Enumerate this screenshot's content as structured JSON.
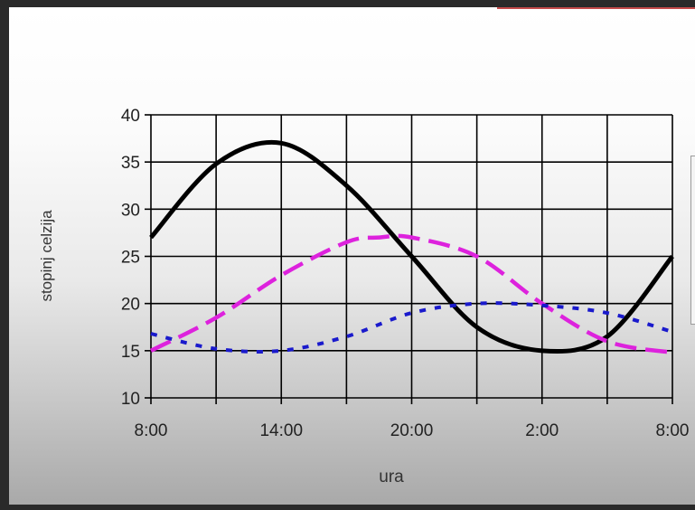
{
  "chart_data": {
    "type": "line",
    "title": "",
    "xlabel": "ura",
    "ylabel": "stopinj celzija",
    "x_ticks": [
      "8:00",
      "14:00",
      "20:00",
      "2:00",
      "8:00"
    ],
    "y_ticks": [
      "10",
      "15",
      "20",
      "25",
      "30",
      "35",
      "40"
    ],
    "ylim": [
      10,
      40
    ],
    "x_hours": [
      0,
      24
    ],
    "grid": true,
    "legend": "right (cut off)",
    "series": [
      {
        "style": "solid",
        "color": "#000000",
        "x": [
          0,
          3,
          6,
          9,
          12,
          15,
          18,
          21,
          24
        ],
        "values": [
          27,
          34.8,
          37,
          32.5,
          25,
          17.5,
          15,
          16.5,
          25
        ]
      },
      {
        "style": "dashed",
        "color": "#dd22dd",
        "x": [
          0,
          3,
          6,
          9,
          10.5,
          12,
          15,
          18,
          21,
          24
        ],
        "values": [
          15,
          18.5,
          23,
          26.5,
          27,
          27,
          25,
          20,
          16,
          14.8
        ]
      },
      {
        "style": "dotted",
        "color": "#1a1acc",
        "x": [
          0,
          3,
          6,
          9,
          12,
          15,
          18,
          21,
          24
        ],
        "values": [
          16.8,
          15.2,
          15,
          16.5,
          19,
          20,
          19.8,
          19,
          17
        ]
      }
    ]
  }
}
